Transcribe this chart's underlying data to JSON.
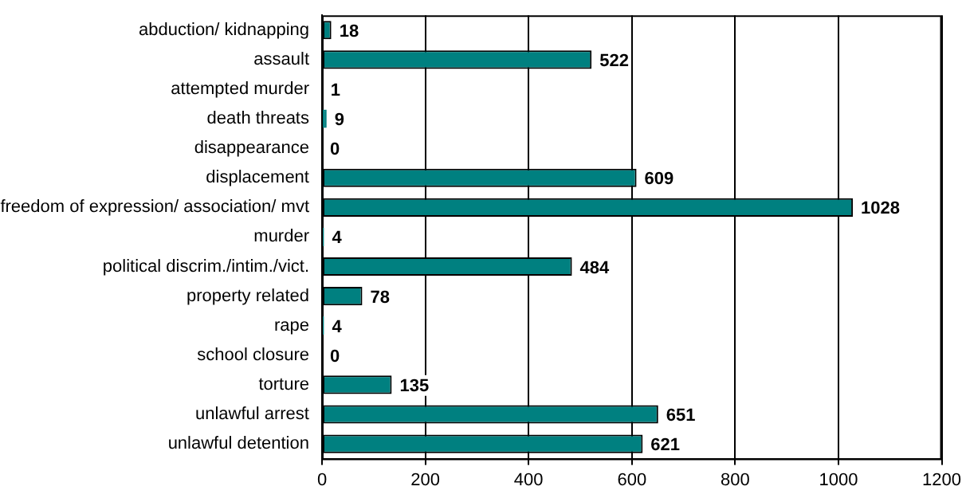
{
  "chart_data": {
    "type": "bar",
    "orientation": "horizontal",
    "categories": [
      "abduction/ kidnapping",
      "assault",
      "attempted murder",
      "death threats",
      "disappearance",
      "displacement",
      "freedom of expression/ association/ mvt",
      "murder",
      "political discrim./intim./vict.",
      "property related",
      "rape",
      "school closure",
      "torture",
      "unlawful arrest",
      "unlawful detention"
    ],
    "values": [
      18,
      522,
      1,
      9,
      0,
      609,
      1028,
      4,
      484,
      78,
      4,
      0,
      135,
      651,
      621
    ],
    "color": "#008080",
    "xlim": [
      0,
      1200
    ],
    "xticks": [
      0,
      200,
      400,
      600,
      800,
      1000,
      1200
    ],
    "grid": "x",
    "data_labels": true,
    "legend": false
  }
}
